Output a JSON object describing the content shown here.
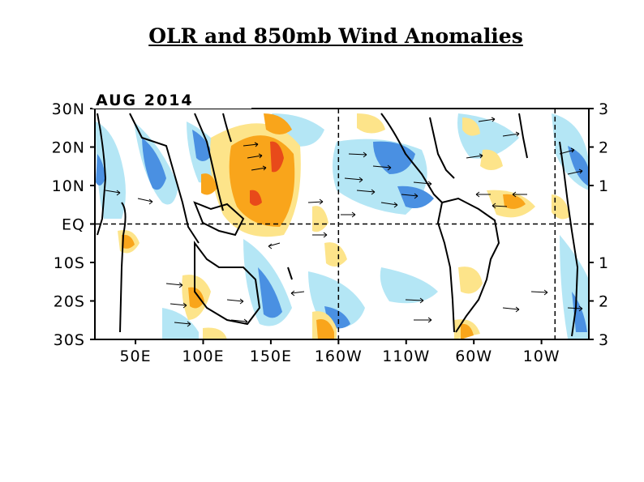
{
  "slide": {
    "title": "OLR and 850mb Wind Anomalies"
  },
  "map": {
    "date_label": "AUG 2014",
    "lat_labels": [
      "30N",
      "20N",
      "10N",
      "EQ",
      "10S",
      "20S",
      "30S"
    ],
    "lat_values": [
      30,
      20,
      10,
      0,
      -10,
      -20,
      -30
    ],
    "right_labels": [
      "3",
      "2",
      "1",
      "",
      "1",
      "2",
      "3"
    ],
    "lon_labels": [
      "50E",
      "100E",
      "150E",
      "160W",
      "110W",
      "60W",
      "10W"
    ],
    "lon_values": [
      50,
      100,
      150,
      200,
      250,
      300,
      350
    ],
    "lon_range": [
      20,
      385
    ],
    "lat_range": [
      -30,
      30
    ],
    "dashed_meridians": [
      200,
      360
    ],
    "colors": {
      "strong_positive": "#e84a1a",
      "positive": "#f9a51b",
      "weak_positive": "#fde48a",
      "weak_negative": "#b4e6f5",
      "negative": "#4a90e2",
      "land_outline": "#000000"
    }
  }
}
